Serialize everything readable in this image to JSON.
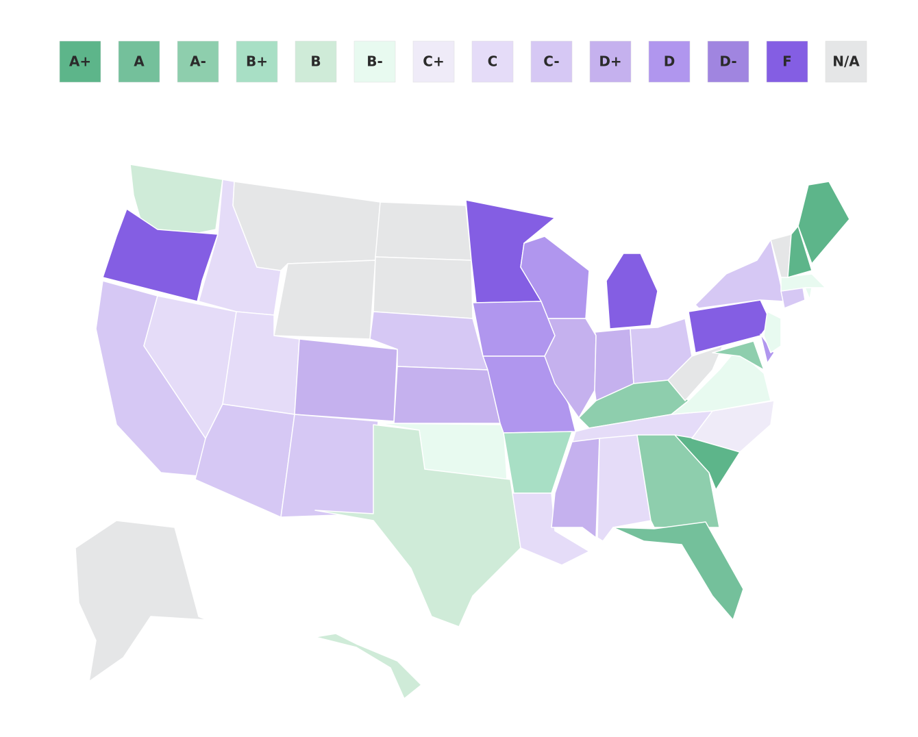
{
  "legend": [
    {
      "label": "A+",
      "color": "#5db58a"
    },
    {
      "label": "A",
      "color": "#74c09b"
    },
    {
      "label": "A-",
      "color": "#8ecead"
    },
    {
      "label": "B+",
      "color": "#a8dfc5"
    },
    {
      "label": "B",
      "color": "#cfebd8"
    },
    {
      "label": "B-",
      "color": "#e8faf0"
    },
    {
      "label": "C+",
      "color": "#efebf8"
    },
    {
      "label": "C",
      "color": "#e5dcf8"
    },
    {
      "label": "C-",
      "color": "#d6c8f4"
    },
    {
      "label": "D+",
      "color": "#c5b1ee"
    },
    {
      "label": "D",
      "color": "#b096ee"
    },
    {
      "label": "D-",
      "color": "#a085e0"
    },
    {
      "label": "F",
      "color": "#845ee3"
    },
    {
      "label": "N/A",
      "color": "#e5e6e7"
    }
  ],
  "regions": [
    "B",
    "F",
    "C-",
    "C",
    "C",
    "N/A",
    "N/A",
    "C",
    "C-",
    "D+",
    "C-",
    "N/A",
    "N/A",
    "C-",
    "D+",
    "B-",
    "B",
    "F",
    "D",
    "D",
    "B+",
    "C",
    "D",
    "D+",
    "F",
    "D+",
    "C-",
    "A-",
    "C",
    "D+",
    "C",
    "A-",
    "A",
    "A+",
    "C+",
    "B-",
    "N/A",
    "F",
    "C-",
    "A-",
    "D",
    "B-",
    "C-",
    "B-",
    "B-",
    "N/A",
    "A+",
    "A+",
    "N/A",
    "B"
  ]
}
